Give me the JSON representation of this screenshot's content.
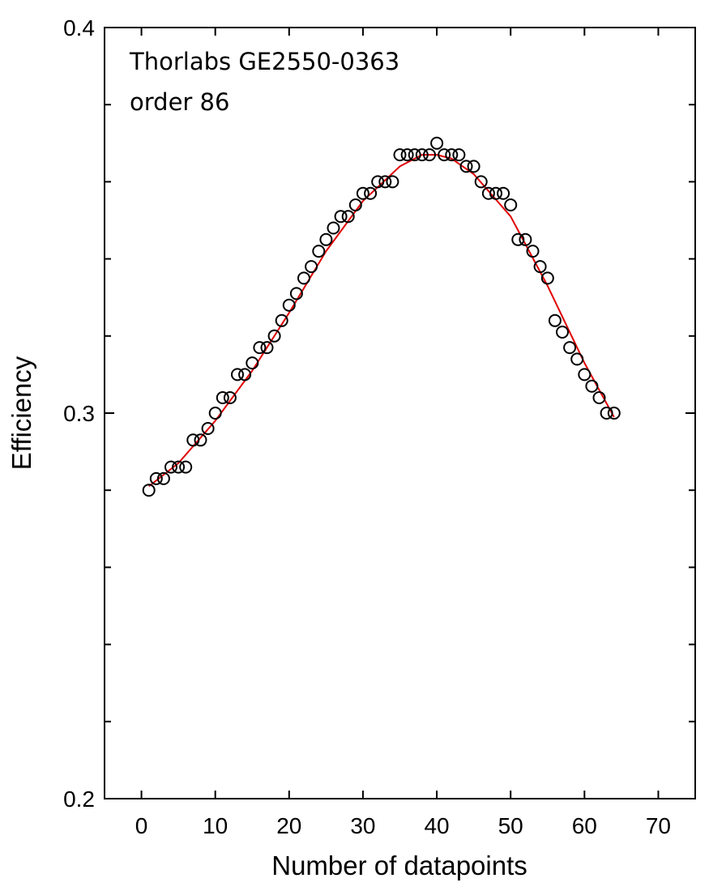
{
  "chart_data": {
    "type": "scatter",
    "xlabel": "Number of datapoints",
    "ylabel": "Efficiency",
    "xlim": [
      -5,
      75
    ],
    "ylim": [
      0.2,
      0.4
    ],
    "x_ticks": [
      0,
      10,
      20,
      30,
      40,
      50,
      60,
      70
    ],
    "y_tick_labels": [
      "0.4",
      "0.3",
      "0.2"
    ],
    "y_ticks": [
      0.4,
      0.3,
      0.2
    ],
    "annotations": [
      "Thorlabs GE2550-0363",
      "order 86"
    ],
    "grid": false,
    "colors": {
      "points": "#000000",
      "fit": "#e00000"
    },
    "series": [
      {
        "marker": "open-circle",
        "x": [
          1,
          2,
          3,
          4,
          5,
          6,
          7,
          8,
          9,
          10,
          11,
          12,
          13,
          14,
          15,
          16,
          17,
          18,
          19,
          20,
          21,
          22,
          23,
          24,
          25,
          26,
          27,
          28,
          29,
          30,
          31,
          32,
          33,
          34,
          35,
          36,
          37,
          38,
          39,
          40,
          41,
          42,
          43,
          44,
          45,
          46,
          47,
          48,
          49,
          50,
          51,
          52,
          53,
          54,
          55,
          56,
          57,
          58,
          59,
          60,
          61,
          62,
          63,
          64
        ],
        "y": [
          0.28,
          0.283,
          0.283,
          0.286,
          0.286,
          0.286,
          0.293,
          0.293,
          0.296,
          0.3,
          0.304,
          0.304,
          0.31,
          0.31,
          0.313,
          0.317,
          0.317,
          0.32,
          0.324,
          0.328,
          0.331,
          0.335,
          0.338,
          0.342,
          0.345,
          0.348,
          0.351,
          0.351,
          0.354,
          0.357,
          0.357,
          0.36,
          0.36,
          0.36,
          0.367,
          0.367,
          0.367,
          0.367,
          0.367,
          0.37,
          0.367,
          0.367,
          0.367,
          0.364,
          0.364,
          0.36,
          0.357,
          0.357,
          0.357,
          0.354,
          0.345,
          0.345,
          0.342,
          0.338,
          0.335,
          0.324,
          0.321,
          0.317,
          0.314,
          0.31,
          0.307,
          0.304,
          0.3,
          0.3
        ]
      },
      {
        "style": "fit-line",
        "x": [
          1,
          5,
          10,
          15,
          20,
          25,
          30,
          35,
          38,
          40,
          42,
          45,
          50,
          55,
          60,
          64
        ],
        "y": [
          0.281,
          0.287,
          0.298,
          0.311,
          0.326,
          0.342,
          0.355,
          0.364,
          0.367,
          0.367,
          0.366,
          0.362,
          0.351,
          0.333,
          0.313,
          0.299
        ]
      }
    ]
  }
}
